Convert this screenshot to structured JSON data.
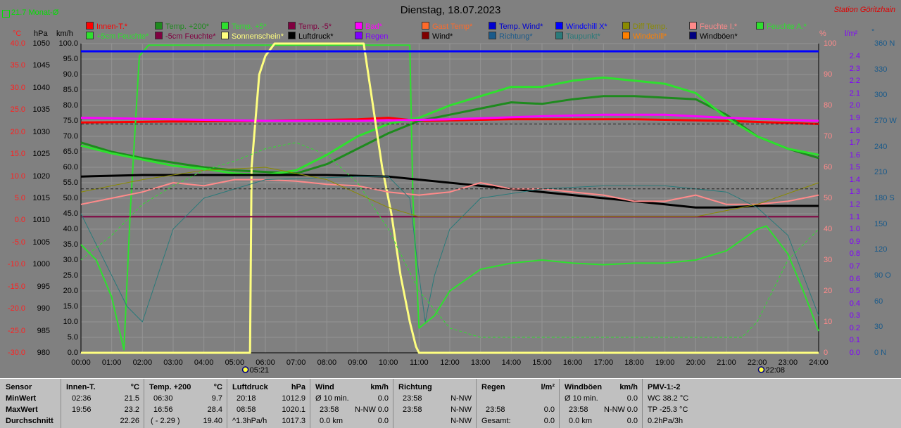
{
  "header": {
    "title": "Dienstag, 18.07.2023",
    "station": "Station Göritzhain",
    "monthly_avg": "21.7 Monat-Ø"
  },
  "axes": {
    "celsius_unit": "°C",
    "celsius_ticks": [
      "40.0",
      "35.0",
      "30.0",
      "25.0",
      "20.0",
      "15.0",
      "10.0",
      "5.0",
      "0.0",
      "-5.0",
      "-10.0",
      "-15.0",
      "-20.0",
      "-25.0",
      "-30.0"
    ],
    "hpa_unit": "hPa",
    "hpa_ticks": [
      "1050",
      "1045",
      "1040",
      "1035",
      "1030",
      "1025",
      "1020",
      "1015",
      "1010",
      "1005",
      "1000",
      "995",
      "990",
      "985",
      "980"
    ],
    "kmh_unit": "km/h",
    "kmh_ticks": [
      "100.0",
      "95.0",
      "90.0",
      "85.0",
      "80.0",
      "75.0",
      "70.0",
      "65.0",
      "60.0",
      "55.0",
      "50.0",
      "45.0",
      "40.0",
      "35.0",
      "30.0",
      "25.0",
      "20.0",
      "15.0",
      "10.0",
      "5.0",
      "0.0"
    ],
    "percent_unit": "%",
    "percent_ticks": [
      "100",
      "90",
      "80",
      "70",
      "60",
      "50",
      "40",
      "30",
      "20",
      "10",
      "0"
    ],
    "rain_unit": "l/m²",
    "rain_ticks": [
      "2.4",
      "2.3",
      "2.2",
      "2.1",
      "2.0",
      "1.9",
      "1.8",
      "1.7",
      "1.6",
      "1.5",
      "1.4",
      "1.3",
      "1.2",
      "1.1",
      "1.0",
      "0.9",
      "0.8",
      "0.7",
      "0.6",
      "0.5",
      "0.4",
      "0.3",
      "0.2",
      "0.1",
      "0.0"
    ],
    "dir_unit": "°",
    "dir_ticks": [
      "360 N",
      "330",
      "300",
      "270 W",
      "240",
      "210",
      "180 S",
      "150",
      "120",
      "90 O",
      "60",
      "30",
      "0 N"
    ],
    "time_ticks": [
      "00:00",
      "01:00",
      "02:00",
      "03:00",
      "04:00",
      "05:00",
      "06:00",
      "07:00",
      "08:00",
      "09:00",
      "10:00",
      "11:00",
      "12:00",
      "13:00",
      "14:00",
      "15:00",
      "16:00",
      "17:00",
      "18:00",
      "19:00",
      "20:00",
      "21:00",
      "22:00",
      "23:00",
      "24:00"
    ],
    "sunrise": "05:21",
    "sunset": "22:08"
  },
  "legend": [
    {
      "label": "Innen-T.*",
      "color": "#ff0000"
    },
    {
      "label": "Temp. +200*",
      "color": "#1e8a1e"
    },
    {
      "label": "Temp. +5*",
      "color": "#2ee02e"
    },
    {
      "label": "Temp. -5*",
      "color": "#800040"
    },
    {
      "label": "Bad*",
      "color": "#ff00ff"
    },
    {
      "label": "Gast Temp*",
      "color": "#ff6a2a"
    },
    {
      "label": "Temp. Wind*",
      "color": "#0000d0"
    },
    {
      "label": "Windchill X*",
      "color": "#0000ff"
    },
    {
      "label": "Diff Temp.",
      "color": "#8a8a00"
    },
    {
      "label": "Feuchte I.*",
      "color": "#ff8a8a"
    },
    {
      "label": "Feuchte A.*",
      "color": "#2ee02e"
    },
    {
      "label": "+5cm Feuchte*",
      "color": "#2ee02e"
    },
    {
      "label": "-5cm Feuchte*",
      "color": "#800040"
    },
    {
      "label": "Sonnenschein*",
      "color": "#ffff80"
    },
    {
      "label": "Luftdruck*",
      "color": "#000000"
    },
    {
      "label": "Regen",
      "color": "#8000ff"
    },
    {
      "label": "Wind*",
      "color": "#800000"
    },
    {
      "label": "Richtung*",
      "color": "#1a5a8a"
    },
    {
      "label": "Taupunkt*",
      "color": "#2a7a7a"
    },
    {
      "label": "Windchill*",
      "color": "#ff8000"
    },
    {
      "label": "Windböen*",
      "color": "#000080"
    }
  ],
  "chart_data": {
    "type": "line",
    "title": "Dienstag, 18.07.2023",
    "x_label": "time (h)",
    "xlim": [
      0,
      24
    ],
    "ylim": [
      0,
      100
    ],
    "y_scale_note": "values on the km/h / % scale 0–100",
    "series": [
      {
        "name": "Innen-T.*",
        "color": "#ff0000",
        "width": 3,
        "points": [
          [
            0,
            74.5
          ],
          [
            3,
            74.8
          ],
          [
            6,
            75
          ],
          [
            9,
            75.5
          ],
          [
            10,
            76
          ],
          [
            11,
            75
          ],
          [
            14,
            75.5
          ],
          [
            18,
            75.5
          ],
          [
            21,
            75
          ],
          [
            24,
            74
          ]
        ]
      },
      {
        "name": "Temp. +200*",
        "color": "#1e8a1e",
        "width": 3,
        "points": [
          [
            0,
            68
          ],
          [
            1,
            65
          ],
          [
            2,
            63
          ],
          [
            3,
            61.5
          ],
          [
            4,
            60
          ],
          [
            5,
            59
          ],
          [
            6,
            58.5
          ],
          [
            7,
            58
          ],
          [
            8,
            61
          ],
          [
            9,
            66
          ],
          [
            10,
            71
          ],
          [
            11,
            75
          ],
          [
            12,
            77
          ],
          [
            13,
            79
          ],
          [
            14,
            81
          ],
          [
            15,
            80.5
          ],
          [
            16,
            82
          ],
          [
            17,
            83
          ],
          [
            18,
            83
          ],
          [
            19,
            82.5
          ],
          [
            20,
            82
          ],
          [
            21,
            77
          ],
          [
            22,
            70
          ],
          [
            23,
            66
          ],
          [
            24,
            63
          ]
        ]
      },
      {
        "name": "Feuchte A.*",
        "color": "#2ee02e",
        "width": 3,
        "points": [
          [
            0,
            67
          ],
          [
            1,
            64.5
          ],
          [
            2,
            62.5
          ],
          [
            3,
            60.5
          ],
          [
            4,
            59.5
          ],
          [
            5,
            58
          ],
          [
            6,
            57.5
          ],
          [
            7,
            59
          ],
          [
            8,
            64
          ],
          [
            9,
            70
          ],
          [
            10,
            74
          ],
          [
            11,
            76
          ],
          [
            12,
            80
          ],
          [
            13,
            83
          ],
          [
            14,
            86
          ],
          [
            15,
            86
          ],
          [
            16,
            88
          ],
          [
            17,
            89
          ],
          [
            18,
            88
          ],
          [
            19,
            87
          ],
          [
            20,
            84
          ],
          [
            21,
            76
          ],
          [
            22,
            70
          ],
          [
            23,
            66
          ],
          [
            24,
            64
          ]
        ]
      },
      {
        "name": "Temp. +5*",
        "color": "#2ee02e",
        "width": 2,
        "points": [
          [
            0,
            35
          ],
          [
            0.5,
            30
          ],
          [
            1,
            18
          ],
          [
            1.4,
            1
          ],
          [
            1.6,
            45
          ],
          [
            1.9,
            96
          ],
          [
            2.2,
            99.5
          ],
          [
            10.7,
            99.5
          ],
          [
            10.8,
            50
          ],
          [
            11,
            8
          ],
          [
            11.5,
            12
          ],
          [
            12,
            20
          ],
          [
            13,
            27
          ],
          [
            14,
            29
          ],
          [
            15,
            30
          ],
          [
            16,
            29
          ],
          [
            17,
            28.5
          ],
          [
            18,
            29
          ],
          [
            19,
            29
          ],
          [
            20,
            30
          ],
          [
            21,
            33
          ],
          [
            22,
            40
          ],
          [
            22.3,
            41
          ],
          [
            23,
            32
          ],
          [
            23.5,
            20
          ],
          [
            24,
            7
          ]
        ]
      },
      {
        "name": "Bad*",
        "color": "#ff00ff",
        "width": 3,
        "points": [
          [
            0,
            76
          ],
          [
            3,
            75.5
          ],
          [
            6,
            75
          ],
          [
            9,
            75
          ],
          [
            12,
            75.5
          ],
          [
            15,
            76.5
          ],
          [
            17,
            77
          ],
          [
            19,
            77
          ],
          [
            21,
            76
          ],
          [
            24,
            75
          ]
        ]
      },
      {
        "name": "Sonnenschein*",
        "color": "#ffff80",
        "width": 3,
        "points": [
          [
            0,
            0
          ],
          [
            5.5,
            0
          ],
          [
            5.55,
            60
          ],
          [
            5.8,
            90
          ],
          [
            6,
            96
          ],
          [
            6.3,
            100
          ],
          [
            9.2,
            100
          ],
          [
            9.5,
            80
          ],
          [
            9.8,
            60
          ],
          [
            10.1,
            45
          ],
          [
            10.4,
            25
          ],
          [
            10.7,
            10
          ],
          [
            10.9,
            2
          ],
          [
            11,
            0
          ],
          [
            24,
            0
          ]
        ]
      },
      {
        "name": "Luftdruck*",
        "color": "#000000",
        "width": 3,
        "points": [
          [
            0,
            57
          ],
          [
            2,
            57.5
          ],
          [
            5,
            57.5
          ],
          [
            8,
            57.5
          ],
          [
            10,
            57
          ],
          [
            11,
            56
          ],
          [
            13,
            54
          ],
          [
            14,
            53
          ],
          [
            15,
            52
          ],
          [
            16,
            51
          ],
          [
            17,
            50
          ],
          [
            18,
            49
          ],
          [
            19,
            48
          ],
          [
            20,
            47
          ],
          [
            21,
            47
          ],
          [
            22,
            47.5
          ],
          [
            23,
            47.5
          ],
          [
            24,
            47.5
          ]
        ]
      },
      {
        "name": "Feuchte I.*",
        "color": "#ff8a8a",
        "width": 2,
        "points": [
          [
            0,
            48
          ],
          [
            1,
            50
          ],
          [
            2,
            52
          ],
          [
            3,
            55
          ],
          [
            4,
            54
          ],
          [
            5,
            56
          ],
          [
            6,
            56
          ],
          [
            7,
            55.5
          ],
          [
            8,
            54.5
          ],
          [
            9,
            54
          ],
          [
            10,
            52
          ],
          [
            11,
            51
          ],
          [
            12,
            52
          ],
          [
            13,
            55
          ],
          [
            14,
            53
          ],
          [
            15,
            53
          ],
          [
            16,
            52
          ],
          [
            17,
            51
          ],
          [
            18,
            49
          ],
          [
            19,
            49
          ],
          [
            20,
            51
          ],
          [
            21,
            48
          ],
          [
            22,
            48
          ],
          [
            23,
            49
          ],
          [
            24,
            51
          ]
        ]
      },
      {
        "name": "Windchill X*",
        "color": "#0000ff",
        "width": 3,
        "points": [
          [
            0,
            97.5
          ],
          [
            24,
            97.5
          ]
        ]
      },
      {
        "name": "Temp. -5*",
        "color": "#800040",
        "width": 2,
        "points": [
          [
            0,
            44
          ],
          [
            24,
            44
          ]
        ]
      },
      {
        "name": "Taupunkt*",
        "color": "#2a7a7a",
        "width": 1,
        "points": [
          [
            0,
            45
          ],
          [
            0.5,
            35
          ],
          [
            1,
            25
          ],
          [
            1.5,
            15
          ],
          [
            2,
            10
          ],
          [
            3,
            40
          ],
          [
            4,
            50
          ],
          [
            6,
            56
          ],
          [
            9,
            57
          ],
          [
            10,
            57
          ],
          [
            10.7,
            50
          ],
          [
            11,
            25
          ],
          [
            11.2,
            10
          ],
          [
            11.5,
            25
          ],
          [
            12,
            40
          ],
          [
            13,
            50
          ],
          [
            15,
            53
          ],
          [
            17,
            54
          ],
          [
            19,
            54
          ],
          [
            21,
            52
          ],
          [
            22,
            47
          ],
          [
            23,
            38
          ],
          [
            24,
            12
          ]
        ]
      },
      {
        "name": "Diff Temp.",
        "color": "#8a8a00",
        "width": 1,
        "points": [
          [
            0,
            52
          ],
          [
            2,
            56
          ],
          [
            4,
            59
          ],
          [
            6,
            60
          ],
          [
            8,
            56
          ],
          [
            10,
            47
          ],
          [
            11,
            44
          ],
          [
            14,
            44
          ],
          [
            18,
            44
          ],
          [
            20,
            44
          ],
          [
            22,
            48
          ],
          [
            24,
            55
          ]
        ]
      },
      {
        "name": "+5cm Feuchte*",
        "color": "#2ee02e",
        "width": 1,
        "dash": true,
        "points": [
          [
            0,
            30
          ],
          [
            1,
            38
          ],
          [
            2,
            48
          ],
          [
            3,
            54
          ],
          [
            4,
            59
          ],
          [
            5,
            62
          ],
          [
            6,
            66
          ],
          [
            7,
            68
          ],
          [
            8,
            64
          ],
          [
            9,
            55
          ],
          [
            10,
            40
          ],
          [
            11,
            20
          ],
          [
            12,
            8
          ],
          [
            13,
            5
          ],
          [
            20,
            5
          ],
          [
            21.5,
            5
          ],
          [
            22,
            10
          ],
          [
            22.5,
            20
          ],
          [
            23,
            30
          ],
          [
            24,
            40
          ]
        ]
      },
      {
        "name": "Gast Temp*",
        "color": "#1e1e1e",
        "width": 1,
        "dash": true,
        "points": [
          [
            0,
            53
          ],
          [
            24,
            53
          ]
        ]
      },
      {
        "name": "Temp. Wind*",
        "color": "#1e1e1e",
        "width": 1,
        "dash": true,
        "points": [
          [
            0,
            74
          ],
          [
            24,
            74
          ]
        ]
      }
    ]
  },
  "stats": {
    "sensor": {
      "head": "Sensor",
      "min": "MinWert",
      "max": "MaxWert",
      "avg": "Durchschnitt"
    },
    "innen": {
      "head": "Innen-T.",
      "unit": "°C",
      "min_time": "02:36",
      "min_val": "21.5",
      "max_time": "19:56",
      "max_val": "23.2",
      "avg_val": "22.26"
    },
    "temp200": {
      "head": "Temp. +200",
      "unit": "°C",
      "min_time": "06:30",
      "min_val": "9.7",
      "max_time": "16:56",
      "max_val": "28.4",
      "avg_extra": "( - 2.29 )",
      "avg_val": "19.40"
    },
    "luftdruck": {
      "head": "Luftdruck",
      "unit": "hPa",
      "min_time": "20:18",
      "min_val": "1012.9",
      "max_time": "08:58",
      "max_val": "1020.1",
      "avg_extra": "^1.3hPa/h",
      "avg_val": "1017.3"
    },
    "wind": {
      "head": "Wind",
      "unit": "km/h",
      "min_label": "Ø 10 min.",
      "min_val": "0.0",
      "max_time": "23:58",
      "max_dir": "N-NW",
      "max_val": "0.0",
      "avg_label": "0.0 km",
      "avg_val": "0.0"
    },
    "richtung": {
      "head": "Richtung",
      "min_time": "23:58",
      "min_val": "N-NW",
      "max_time": "23:58",
      "max_val": "N-NW",
      "avg_val": "N-NW"
    },
    "regen": {
      "head": "Regen",
      "unit": "l/m²",
      "max_time": "23:58",
      "max_val": "0.0",
      "avg_label": "Gesamt:",
      "avg_val": "0.0"
    },
    "boeen": {
      "head": "Windböen",
      "unit": "km/h",
      "min_label": "Ø 10 min.",
      "min_val": "0.0",
      "max_time": "23:58",
      "max_dir": "N-NW",
      "max_val": "0.0",
      "avg_label": "0.0 km",
      "avg_val": "0.0"
    },
    "pmv": {
      "head": "PMV-1:-2",
      "wc": "WC 38.2 °C",
      "tp": "TP -25.3 °C",
      "hpa": "0.2hPa/3h"
    }
  }
}
